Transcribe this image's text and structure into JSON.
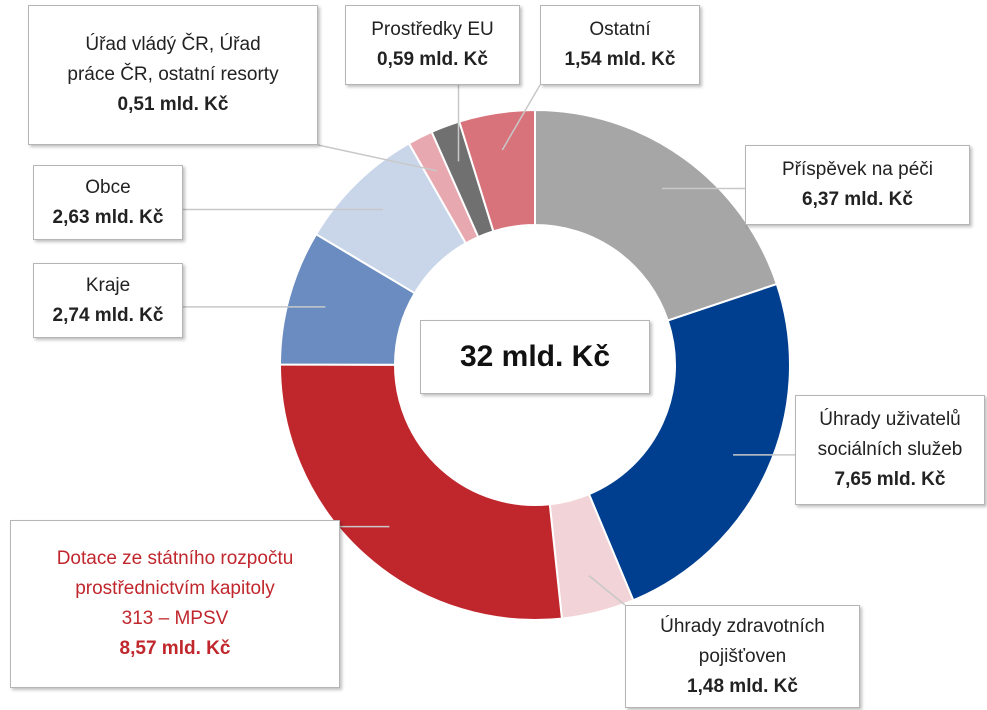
{
  "chart_data": {
    "type": "donut",
    "center_label": "32 mld. Kč",
    "categories": [
      "Příspěvek na péči",
      "Úhrady uživatelů\nsociálních služeb",
      "Úhrady zdravotních\npojišťoven",
      "Dotace ze státního rozpočtu\nprostřednictvím kapitoly\n313 – MPSV",
      "Kraje",
      "Obce",
      "Úřad vládý ČR, Úřad\npráce ČR, ostatní resorty",
      "Prostředky EU",
      "Ostatní"
    ],
    "values": [
      6.37,
      7.65,
      1.48,
      8.57,
      2.74,
      2.63,
      0.51,
      0.59,
      1.54
    ],
    "value_labels": [
      "6,37 mld. Kč",
      "7,65 mld. Kč",
      "1,48 mld. Kč",
      "8,57 mld. Kč",
      "2,74 mld. Kč",
      "2,63 mld. Kč",
      "0,51 mld. Kč",
      "0,59 mld. Kč",
      "1,54 mld. Kč"
    ],
    "colors": [
      "#a6a6a6",
      "#003f8f",
      "#f2d3d7",
      "#c0272d",
      "#6a8cc0",
      "#c9d6ea",
      "#e8a8b0",
      "#707070",
      "#d9737b"
    ],
    "label_colors": [
      "#222222",
      "#222222",
      "#222222",
      "#c0272d",
      "#222222",
      "#222222",
      "#222222",
      "#222222",
      "#222222"
    ]
  }
}
